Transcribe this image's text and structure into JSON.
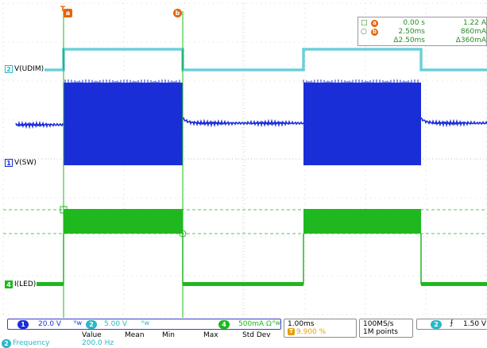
{
  "display": {
    "channels": [
      {
        "id": "ch2",
        "number": "2",
        "label": "V(UDIM)",
        "color": "#2ab8c6"
      },
      {
        "id": "ch1",
        "number": "1",
        "label": "V(SW)",
        "color": "#1a2ed8"
      },
      {
        "id": "ch4",
        "number": "4",
        "label": "I(LED)",
        "color": "#1fb81f"
      }
    ],
    "cursor_a_tag": "a",
    "cursor_b_tag": "b",
    "trigger_marker": "T"
  },
  "readout": {
    "row1": {
      "symbol": "□",
      "tag": "a",
      "time": "0.00 s",
      "value": "1.22 A"
    },
    "row2": {
      "symbol": "○",
      "tag": "b",
      "time": "2.50ms",
      "value": "860mA"
    },
    "row3": {
      "time": "Δ2.50ms",
      "value": "Δ360mA"
    }
  },
  "bottom": {
    "ch1": {
      "number": "1",
      "scale": "20.0 V",
      "bw": "ᴮw"
    },
    "ch2": {
      "number": "2",
      "scale": "5.00 V",
      "bw": "ᴮw"
    },
    "ch4": {
      "number": "4",
      "scale": "500mA Ω",
      "bw": "ᴮw"
    },
    "timebase": "1.00ms",
    "trigger_pos": "9.900 %",
    "trigger_pos_tag": "T",
    "sample_rate": "100MS/s",
    "record_length": "1M points",
    "trigger": {
      "number": "2",
      "slope": "⨍",
      "level": "1.50 V"
    },
    "measure_headers": [
      "Value",
      "Mean",
      "Min",
      "Max",
      "Std Dev"
    ],
    "measurement": {
      "number": "2",
      "name": "Frequency",
      "value": "200.0 Hz"
    }
  },
  "colors": {
    "ch1": "#1a2ed8",
    "ch2": "#2ab8c6",
    "ch4": "#1fb81f",
    "cursor": "#1fb81f",
    "tag": "#e5650a",
    "grid": "#b8b8b8"
  }
}
